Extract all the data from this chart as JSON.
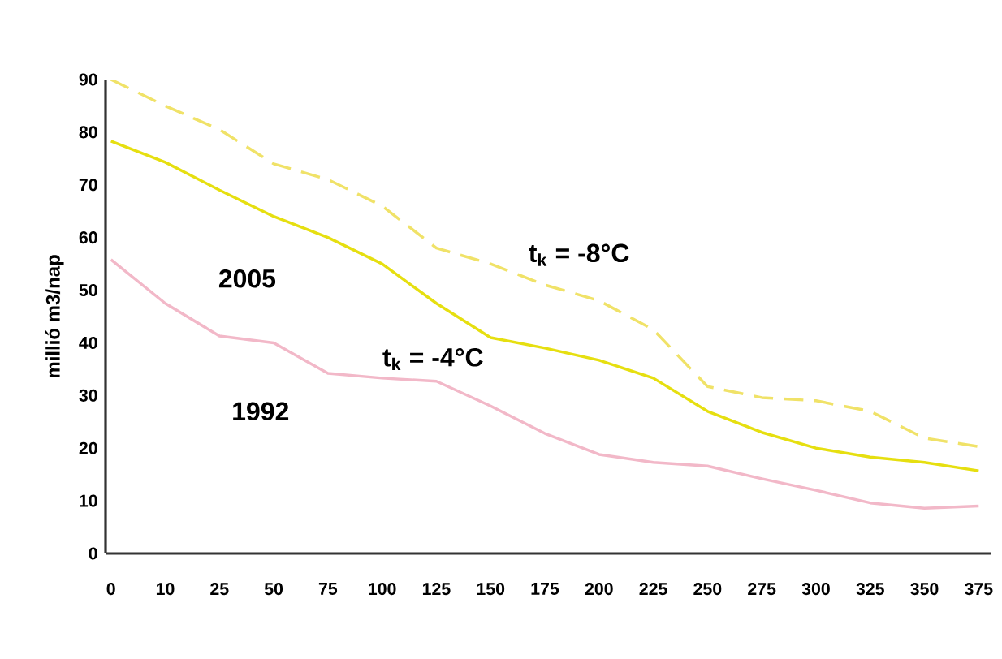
{
  "chart_data": {
    "type": "line",
    "ylabel": "millió m3/nap",
    "categories": [
      "0",
      "10",
      "25",
      "50",
      "75",
      "100",
      "125",
      "150",
      "175",
      "200",
      "225",
      "250",
      "275",
      "300",
      "325",
      "350",
      "375"
    ],
    "series": [
      {
        "name": "t$_{k}$ = -8°C",
        "color": "#f0e268",
        "line_style": "dashed",
        "values": [
          90,
          85,
          80.5,
          74,
          71,
          66,
          58,
          55,
          51,
          48,
          42.5,
          31.7,
          29.6,
          29,
          27,
          21.9,
          20.3
        ]
      },
      {
        "name": "t$_{k}$ = -4°C",
        "color": "#e6df10",
        "line_style": "solid",
        "values": [
          78.3,
          74.3,
          69,
          64,
          60,
          55,
          47.5,
          41,
          39,
          36.7,
          33.3,
          27,
          23,
          20,
          18.3,
          17.3,
          15.7
        ]
      },
      {
        "name": "1992",
        "color": "#f2b8c8",
        "line_style": "solid",
        "values": [
          55.8,
          47.5,
          41.3,
          40,
          34.2,
          33.3,
          32.7,
          28,
          22.8,
          18.8,
          17.3,
          16.6,
          14.2,
          12,
          9.6,
          8.6,
          9
        ]
      }
    ],
    "ylim": [
      0,
      90
    ],
    "yticks": [
      0,
      10,
      20,
      30,
      40,
      50,
      60,
      70,
      80,
      90
    ],
    "grid": false,
    "legend": false,
    "annotations": [
      "2005"
    ]
  }
}
